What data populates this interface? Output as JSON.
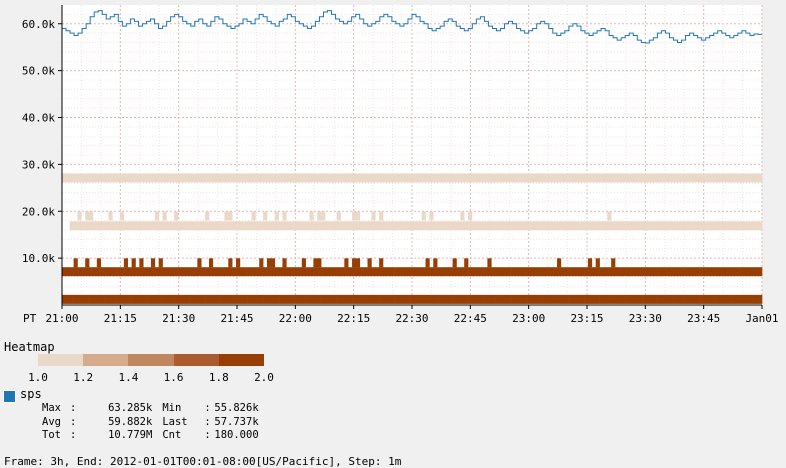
{
  "chart_data": {
    "type": "line+heatmap",
    "timezone_label": "PT",
    "x_tick_labels": [
      "21:00",
      "21:15",
      "21:30",
      "21:45",
      "22:00",
      "22:15",
      "22:30",
      "22:45",
      "23:00",
      "23:15",
      "23:30",
      "23:45",
      "Jan01"
    ],
    "x_start": "2011-12-31T21:00:00-08:00",
    "x_end": "2012-01-01T00:00:00-08:00",
    "y_tick_labels": [
      "10.0k",
      "20.0k",
      "30.0k",
      "40.0k",
      "50.0k",
      "60.0k"
    ],
    "y_ticks": [
      10000,
      20000,
      30000,
      40000,
      50000,
      60000
    ],
    "ylim": [
      0,
      64000
    ],
    "grid": true,
    "series": [
      {
        "name": "sps",
        "color": "#1f77b4",
        "type": "line",
        "time_range": [
          "21:00",
          "00:00"
        ],
        "values": [
          59000,
          58500,
          58000,
          57500,
          58000,
          59000,
          60000,
          61500,
          62500,
          62800,
          62000,
          61000,
          61500,
          62000,
          60500,
          59500,
          60000,
          61000,
          60500,
          59500,
          60000,
          60500,
          61000,
          60000,
          59000,
          59500,
          60500,
          61500,
          62000,
          61500,
          60500,
          60000,
          59500,
          60500,
          61000,
          60000,
          59500,
          60500,
          61500,
          61000,
          60000,
          59500,
          59000,
          59500,
          60000,
          61000,
          60500,
          60000,
          61000,
          62000,
          61500,
          60500,
          60000,
          59500,
          60500,
          61000,
          62000,
          61500,
          60500,
          60000,
          59500,
          59000,
          59500,
          60500,
          61500,
          62500,
          62800,
          62000,
          61000,
          60500,
          60000,
          60500,
          61500,
          62000,
          61000,
          60000,
          59500,
          60000,
          60500,
          61500,
          62000,
          61500,
          60500,
          60000,
          59500,
          60000,
          61000,
          62000,
          61500,
          60500,
          60000,
          59000,
          58500,
          59000,
          59500,
          60500,
          61000,
          60500,
          59500,
          59000,
          58500,
          59000,
          60000,
          61000,
          61500,
          60500,
          59500,
          59000,
          58500,
          59000,
          60000,
          60500,
          60000,
          59000,
          58500,
          58000,
          58500,
          59000,
          60000,
          60500,
          60000,
          59000,
          58000,
          57500,
          58000,
          58500,
          59500,
          60000,
          59500,
          58500,
          58000,
          57500,
          58000,
          58500,
          59000,
          58500,
          57500,
          57000,
          56500,
          57000,
          57500,
          58000,
          57500,
          56500,
          56000,
          55900,
          56500,
          57000,
          58000,
          58500,
          58000,
          57000,
          56500,
          56000,
          56500,
          57500,
          58000,
          57500,
          57000,
          56500,
          57000,
          57500,
          58000,
          58500,
          58000,
          57500,
          57000,
          57500,
          58000,
          58500,
          58000,
          57500,
          57800,
          57737
        ]
      }
    ],
    "heatmap": {
      "title": "Heatmap",
      "scale_ticks": [
        "1.0",
        "1.2",
        "1.4",
        "1.6",
        "1.8",
        "2.0"
      ],
      "scale_colors": [
        "#ead8c8",
        "#d4ac8c",
        "#c08660",
        "#aa5c2e",
        "#963e04"
      ],
      "rows": [
        {
          "y_center": 1200,
          "level": 5,
          "pattern": "1111111111111111111111111111111111111111111111111111111111111111111111111111111111111111111111111111111111111111111111111111111111111111111111111111111111111111111111111111111111111"
        },
        {
          "y_center": 7100,
          "level": 5,
          "pattern": "1111111111111111111111111111111111111111111111111111111111111111111111111111111111111111111111111111111111111111111111111111111111111111111111111111111111111111111111111111111111111"
        },
        {
          "y_center": 9000,
          "level": 5,
          "pattern": "0001001001000000101010010100000000010010000101000001011001000010011000000101100100100000000000101000010010000010000000000000000010000000101000100000000000000000000000000000000000000"
        },
        {
          "y_center": 16900,
          "level": 1,
          "pattern": "0011111111111111111111111111111111111111111111111111111111111111111111111111111111111111111111111111111111111111111111111111111111111111111111111111111111111111111111111111111111111"
        },
        {
          "y_center": 19000,
          "level": 1,
          "pattern": "0000101100001001000000001010010000000100001100000100100101000000101100010001100010100000000001010000000101000000000000000000000000000000000001000000000000000000000000000000000000000"
        },
        {
          "y_center": 27100,
          "level": 1,
          "pattern": "1111111111111111111111111111111111111111111111111111111111111111111111111111111111111111111111111111111111111111111111111111111111111111111111111111111111111111111111111111111111111"
        }
      ]
    },
    "stats": {
      "max_label": "Max",
      "max": "63.285k",
      "min_label": "Min",
      "min": "55.826k",
      "avg_label": "Avg",
      "avg": "59.882k",
      "last_label": "Last",
      "last": "57.737k",
      "tot_label": "Tot",
      "tot": "10.779M",
      "cnt_label": "Cnt",
      "cnt": "180.000"
    },
    "footer": "Frame: 3h, End: 2012-01-01T00:01-08:00[US/Pacific], Step: 1m"
  }
}
